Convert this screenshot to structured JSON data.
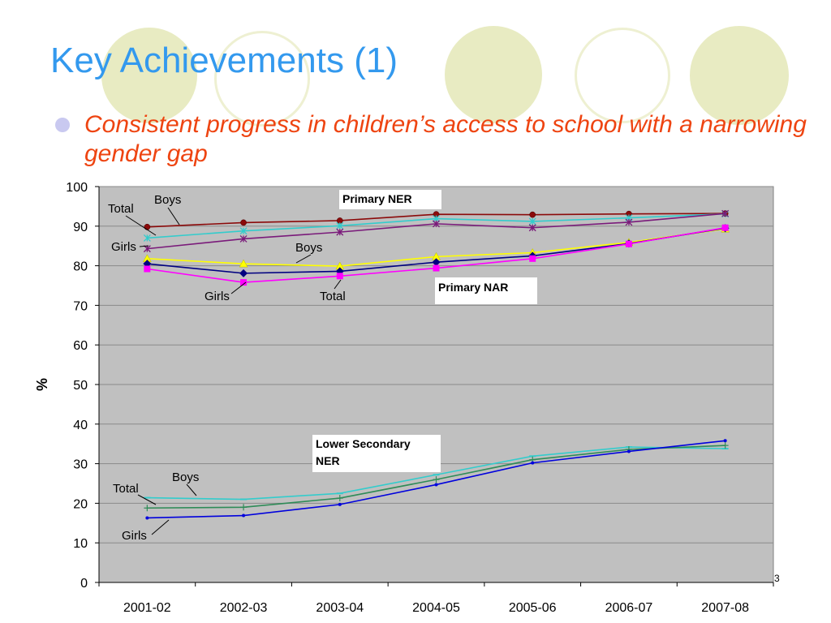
{
  "slide": {
    "title": "Key Achievements (1)",
    "bullet": "Consistent progress in children’s access to school with a narrowing gender gap",
    "slide_number": "3",
    "colors": {
      "title": "#3399ee",
      "bullet_text": "#ee4411",
      "bullet_dot": "#c9c9f0",
      "decor_circle": "#e8ebc2",
      "plot_background": "#c0c0c0"
    }
  },
  "chart_data": {
    "type": "line",
    "categories": [
      "2001-02",
      "2002-03",
      "2003-04",
      "2004-05",
      "2005-06",
      "2006-07",
      "2007-08"
    ],
    "ylabel": "%",
    "xlabel": "",
    "ylim": [
      0,
      100
    ],
    "yticks": [
      "0",
      "10",
      "20",
      "30",
      "40",
      "50",
      "60",
      "70",
      "80",
      "90",
      "100"
    ],
    "grid": true,
    "series": [
      {
        "group": "Primary NER",
        "label": "Boys",
        "color": "#8b0a0a",
        "marker": "circle",
        "values": [
          89.8,
          90.9,
          91.4,
          93.0,
          92.9,
          93.1,
          93.2
        ]
      },
      {
        "group": "Primary NER",
        "label": "Total",
        "color": "#33cccc",
        "marker": "star",
        "values": [
          87.0,
          88.8,
          90.1,
          91.9,
          91.2,
          92.1,
          93.1
        ]
      },
      {
        "group": "Primary NER",
        "label": "Girls",
        "color": "#7a1a7a",
        "marker": "star",
        "values": [
          84.3,
          86.8,
          88.5,
          90.6,
          89.6,
          91.0,
          93.2
        ]
      },
      {
        "group": "Primary NAR",
        "label": "Boys",
        "color": "#ffff00",
        "marker": "triangle",
        "values": [
          81.8,
          80.5,
          79.9,
          82.3,
          83.3,
          85.9,
          89.3
        ]
      },
      {
        "group": "Primary NAR",
        "label": "Total",
        "color": "#000080",
        "marker": "diamond",
        "values": [
          80.5,
          78.1,
          78.6,
          80.9,
          82.5,
          85.6,
          89.5
        ]
      },
      {
        "group": "Primary NAR",
        "label": "Girls",
        "color": "#ff00ff",
        "marker": "square",
        "values": [
          79.2,
          75.8,
          77.4,
          79.4,
          81.8,
          85.5,
          89.6
        ]
      },
      {
        "group": "Lower Secondary NER",
        "label": "Boys",
        "color": "#33cccc",
        "marker": "dash",
        "values": [
          21.4,
          21.0,
          22.5,
          27.2,
          31.9,
          34.2,
          33.8
        ]
      },
      {
        "group": "Lower Secondary NER",
        "label": "Total",
        "color": "#2e8b57",
        "marker": "plus",
        "values": [
          18.8,
          19.0,
          21.3,
          26.0,
          31.0,
          33.6,
          34.6
        ]
      },
      {
        "group": "Lower Secondary NER",
        "label": "Girls",
        "color": "#0000dd",
        "marker": "dot",
        "values": [
          16.3,
          16.9,
          19.7,
          24.7,
          30.2,
          33.1,
          35.8
        ]
      }
    ],
    "group_labels": [
      "Primary NER",
      "Primary NAR",
      "Lower Secondary NER"
    ],
    "annotations": [
      {
        "text": "Boys",
        "series": 0,
        "point": 0
      },
      {
        "text": "Total",
        "series": 1,
        "point": 0
      },
      {
        "text": "Girls",
        "series": 2,
        "point": 0
      },
      {
        "text": "Boys",
        "series": 3,
        "point": 1
      },
      {
        "text": "Girls",
        "series": 5,
        "point": 1
      },
      {
        "text": "Total",
        "series": 4,
        "point": 2
      },
      {
        "text": "Boys",
        "series": 6,
        "point": 1
      },
      {
        "text": "Total",
        "series": 7,
        "point": 0
      },
      {
        "text": "Girls",
        "series": 8,
        "point": 0
      }
    ]
  }
}
